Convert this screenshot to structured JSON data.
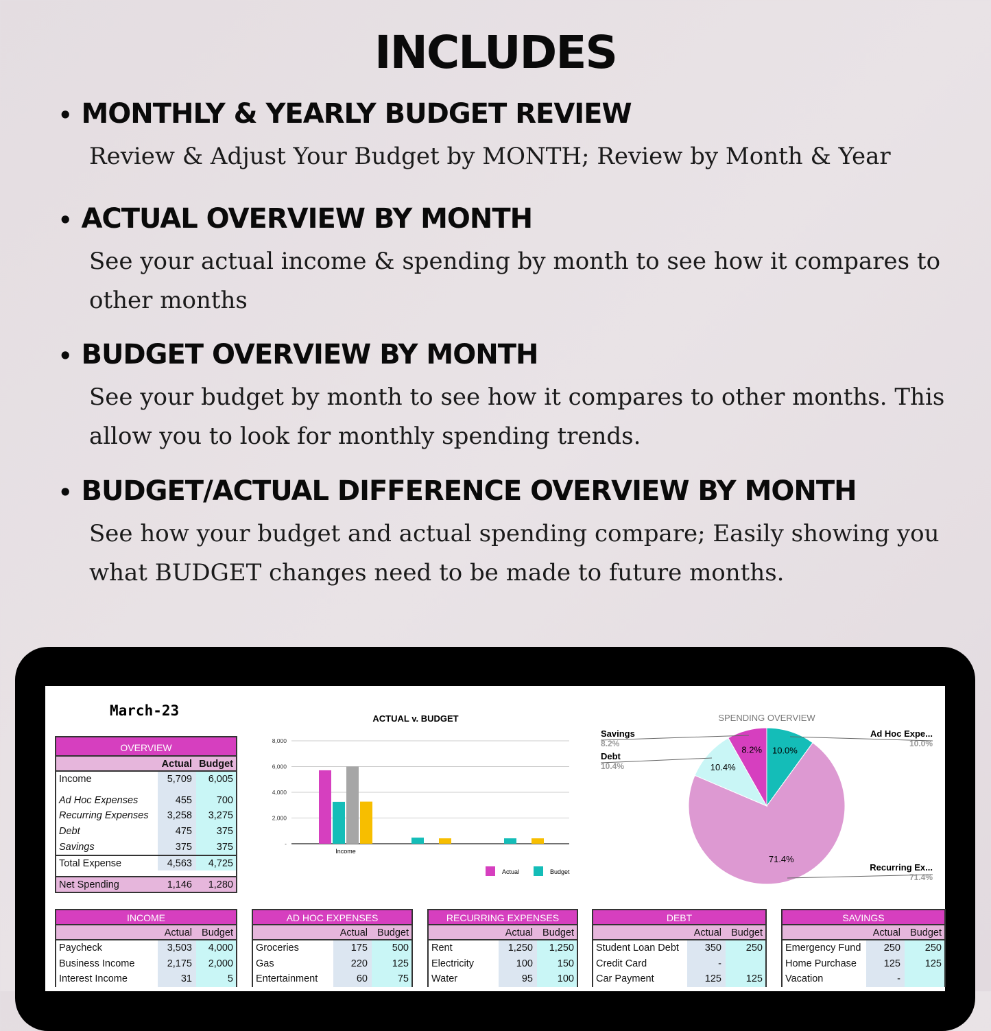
{
  "title": "INCLUDES",
  "sections": [
    {
      "heading": "MONTHLY & YEARLY BUDGET REVIEW",
      "body": "Review & Adjust Your Budget by MONTH; Review by Month & Year"
    },
    {
      "heading": "ACTUAL OVERVIEW BY MONTH",
      "body": "See your actual income & spending by month to see how it compares to other months"
    },
    {
      "heading": "BUDGET OVERVIEW BY MONTH",
      "body": "See your budget  by month to see how it compares to other months. This allow you to look for monthly spending trends."
    },
    {
      "heading": "BUDGET/ACTUAL DIFFERENCE OVERVIEW BY MONTH",
      "body": "See how your budget and actual spending compare; Easily showing you what BUDGET changes need to be made to future months."
    }
  ],
  "sheet": {
    "month": "March-23",
    "overview": {
      "title": "OVERVIEW",
      "col_actual": "Actual",
      "col_budget": "Budget",
      "income": {
        "label": "Income",
        "actual": "5,709",
        "budget": "6,005"
      },
      "rows": [
        {
          "label": "Ad Hoc Expenses",
          "actual": "455",
          "budget": "700"
        },
        {
          "label": "Recurring Expenses",
          "actual": "3,258",
          "budget": "3,275"
        },
        {
          "label": "Debt",
          "actual": "475",
          "budget": "375"
        },
        {
          "label": "Savings",
          "actual": "375",
          "budget": "375"
        }
      ],
      "total": {
        "label": "Total Expense",
        "actual": "4,563",
        "budget": "4,725"
      },
      "net": {
        "label": "Net Spending",
        "actual": "1,146",
        "budget": "1,280"
      }
    },
    "tables": [
      {
        "title": "INCOME",
        "col_actual": "Actual",
        "col_budget": "Budget",
        "rows": [
          {
            "label": "Paycheck",
            "actual": "3,503",
            "budget": "4,000"
          },
          {
            "label": "Business Income",
            "actual": "2,175",
            "budget": "2,000"
          },
          {
            "label": "Interest Income",
            "actual": "31",
            "budget": "5"
          }
        ]
      },
      {
        "title": "AD HOC EXPENSES",
        "col_actual": "Actual",
        "col_budget": "Budget",
        "rows": [
          {
            "label": "Groceries",
            "actual": "175",
            "budget": "500"
          },
          {
            "label": "Gas",
            "actual": "220",
            "budget": "125"
          },
          {
            "label": "Entertainment",
            "actual": "60",
            "budget": "75"
          }
        ]
      },
      {
        "title": "RECURRING EXPENSES",
        "col_actual": "Actual",
        "col_budget": "Budget",
        "rows": [
          {
            "label": "Rent",
            "actual": "1,250",
            "budget": "1,250"
          },
          {
            "label": "Electricity",
            "actual": "100",
            "budget": "150"
          },
          {
            "label": "Water",
            "actual": "95",
            "budget": "100"
          }
        ]
      },
      {
        "title": "DEBT",
        "col_actual": "Actual",
        "col_budget": "Budget",
        "rows": [
          {
            "label": "Student Loan Debt",
            "actual": "350",
            "budget": "250"
          },
          {
            "label": "Credit Card",
            "actual": "-",
            "budget": ""
          },
          {
            "label": "Car Payment",
            "actual": "125",
            "budget": "125"
          }
        ]
      },
      {
        "title": "SAVINGS",
        "col_actual": "Actual",
        "col_budget": "Budget",
        "rows": [
          {
            "label": "Emergency Fund",
            "actual": "250",
            "budget": "250"
          },
          {
            "label": "Home Purchase",
            "actual": "125",
            "budget": "125"
          },
          {
            "label": "Vacation",
            "actual": "-",
            "budget": ""
          }
        ]
      }
    ]
  },
  "chart_data": [
    {
      "type": "bar",
      "title": "ACTUAL v. BUDGET",
      "categories": [
        "Income",
        "",
        ""
      ],
      "yticks": [
        "8,000",
        "6,000",
        "4,000",
        "2,000",
        "-"
      ],
      "ylim": [
        0,
        8000
      ],
      "grid": true,
      "legend_position": "bottom-right",
      "series": [
        {
          "name": "Actual",
          "color": "#d63fbf",
          "values": [
            5709,
            0,
            0
          ]
        },
        {
          "name": "Budget",
          "color": "#14bdb8",
          "values": [
            3258,
            475,
            420
          ]
        },
        {
          "color": "#a6a6a6",
          "values": [
            6005,
            0,
            0
          ]
        },
        {
          "color": "#f7be00",
          "values": [
            3275,
            420,
            420
          ]
        }
      ]
    },
    {
      "type": "pie",
      "title": "SPENDING OVERVIEW",
      "slices": [
        {
          "label": "Ad Hoc Expe...",
          "value": 10.0,
          "pct": "10.0%",
          "color": "#14bdb8"
        },
        {
          "label": "Recurring Ex...",
          "value": 71.4,
          "pct": "71.4%",
          "color": "#dd99d2"
        },
        {
          "label": "Debt",
          "value": 10.4,
          "pct": "10.4%",
          "color": "#c9f6f6"
        },
        {
          "label": "Savings",
          "value": 8.2,
          "pct": "8.2%",
          "color": "#d63fbf"
        }
      ]
    }
  ]
}
